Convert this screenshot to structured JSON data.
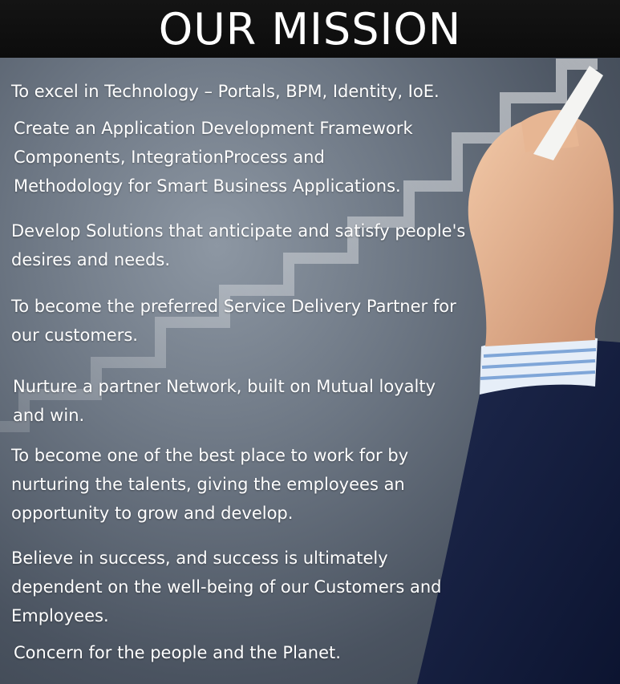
{
  "header": {
    "title": "OUR MISSION"
  },
  "mission": {
    "items": [
      "To excel in Technology – Portals, BPM, Identity, IoE.",
      "Create an Application Development Framework Components, IntegrationProcess and Methodology for Smart Business Applications.",
      "Develop Solutions that anticipate and satisfy people's desires and needs.",
      "To become the preferred Service Delivery Partner for our customers.",
      "Nurture a partner Network, built on Mutual loyalty and win.",
      "To become one of the best place to work for by nurturing the talents, giving the employees an opportunity to grow and develop.",
      "Believe in success, and success is ultimately dependent on the well-being of our Customers and Employees.",
      "Concern for the people and the Planet."
    ]
  }
}
